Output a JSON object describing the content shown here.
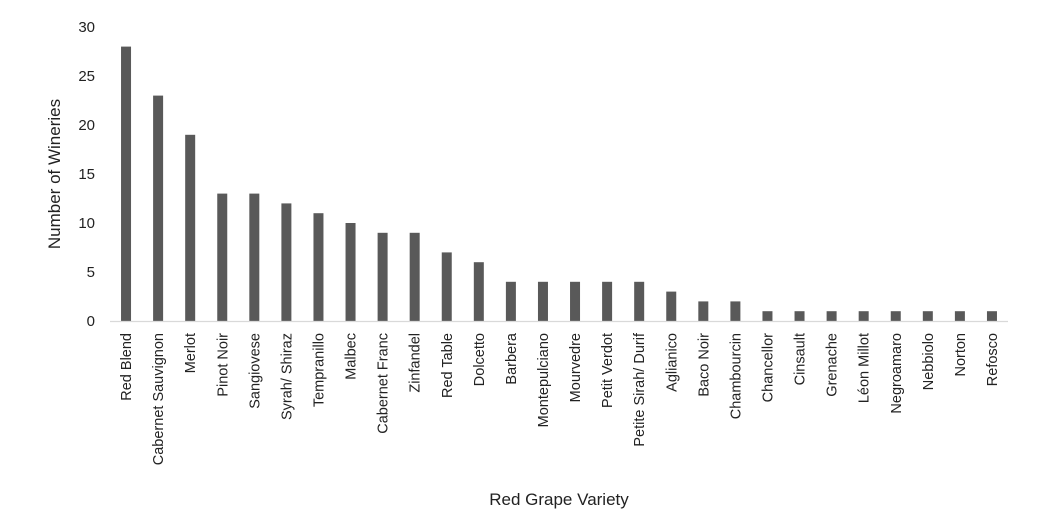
{
  "chart_data": {
    "type": "bar",
    "title": "",
    "xlabel": "Red Grape Variety",
    "ylabel": "Number of Wineries",
    "ylim": [
      0,
      30
    ],
    "yticks": [
      0,
      5,
      10,
      15,
      20,
      25,
      30
    ],
    "grid": false,
    "legend": "none",
    "bar_color": "#595959",
    "axis_color": "#d9d9d9",
    "categories": [
      "Red Blend",
      "Cabernet Sauvignon",
      "Merlot",
      "Pinot Noir",
      "Sangiovese",
      "Syrah/ Shiraz",
      "Tempranillo",
      "Malbec",
      "Cabernet Franc",
      "Zinfandel",
      "Red Table",
      "Dolcetto",
      "Barbera",
      "Montepulciano",
      "Mourvedre",
      "Petit Verdot",
      "Petite Sirah/ Durif",
      "Aglianico",
      "Baco Noir",
      "Chambourcin",
      "Chancellor",
      "Cinsault",
      "Grenache",
      "Léon Millot",
      "Negroamaro",
      "Nebbiolo",
      "Norton",
      "Refosco"
    ],
    "values": [
      28,
      23,
      19,
      13,
      13,
      12,
      11,
      10,
      9,
      9,
      7,
      6,
      4,
      4,
      4,
      4,
      4,
      3,
      2,
      2,
      1,
      1,
      1,
      1,
      1,
      1,
      1,
      1
    ]
  }
}
